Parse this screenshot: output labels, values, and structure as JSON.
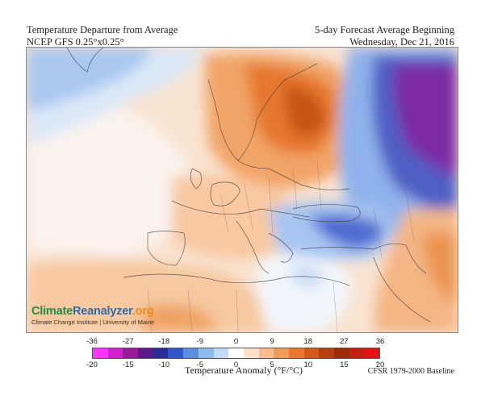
{
  "header": {
    "title_line1": "Temperature Departure from Average",
    "title_line2": "NCEP GFS 0.25°x0.25°",
    "forecast_line1": "5-day Forecast Average Beginning",
    "forecast_line2": "Wednesday, Dec 21, 2016"
  },
  "branding": {
    "logo_part1": "Climate",
    "logo_part2": "Reanalyzer",
    "logo_part3": ".org",
    "subtitle": "Climate Change Institute | University of Maine"
  },
  "legend": {
    "fahrenheit_ticks": [
      "-36",
      "-27",
      "-18",
      "-9",
      "0",
      "9",
      "18",
      "27",
      "36"
    ],
    "celsius_ticks": [
      "-20",
      "-15",
      "-10",
      "-5",
      "0",
      "5",
      "10",
      "15",
      "20"
    ],
    "title": "Temperature Anomaly (°F/°C)",
    "colors": [
      "#ff33ff",
      "#d21fd2",
      "#9a1b9a",
      "#5b1a8c",
      "#2a2d98",
      "#2f58c6",
      "#5a8fe0",
      "#8fbcef",
      "#c4dcf6",
      "#ffffff",
      "#fde0c8",
      "#f9bd8d",
      "#f29a59",
      "#e9782e",
      "#d65a17",
      "#b8400e",
      "#9c2b08",
      "#c81e0e",
      "#e41212"
    ]
  },
  "baseline": "CFSR 1979-2000 Baseline"
}
